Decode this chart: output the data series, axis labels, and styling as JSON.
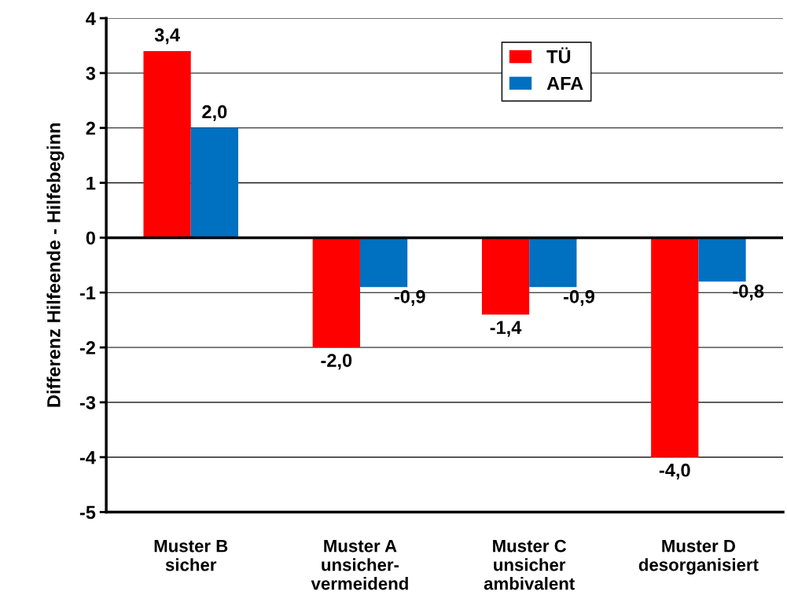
{
  "chart_data": {
    "type": "bar",
    "ylabel": "Differenz Hilfeende - Hilfebeginn",
    "categories": [
      "Muster B\nsicher",
      "Muster A\nunsicher-\nvermeidend",
      "Muster C\nunsicher\nambivalent",
      "Muster D\ndesorganisiert"
    ],
    "series": [
      {
        "name": "TÜ",
        "color": "#ff0000",
        "values": [
          3.4,
          -2.0,
          -1.4,
          -4.0
        ],
        "value_labels": [
          "3,4",
          "-2,0",
          "-1,4",
          "-4,0"
        ]
      },
      {
        "name": "AFA",
        "color": "#0070c0",
        "values": [
          2.0,
          -0.9,
          -0.9,
          -0.8
        ],
        "value_labels": [
          "2,0",
          "-0,9",
          "-0,9",
          "-0,8"
        ]
      }
    ],
    "ylim": [
      -5,
      4
    ],
    "yticks": [
      -5,
      -4,
      -3,
      -2,
      -1,
      0,
      1,
      2,
      3,
      4
    ],
    "grid": "y",
    "legend": "top right",
    "ref_lines": [
      {
        "axis": "y",
        "value": 0,
        "color": "#000000"
      }
    ]
  }
}
